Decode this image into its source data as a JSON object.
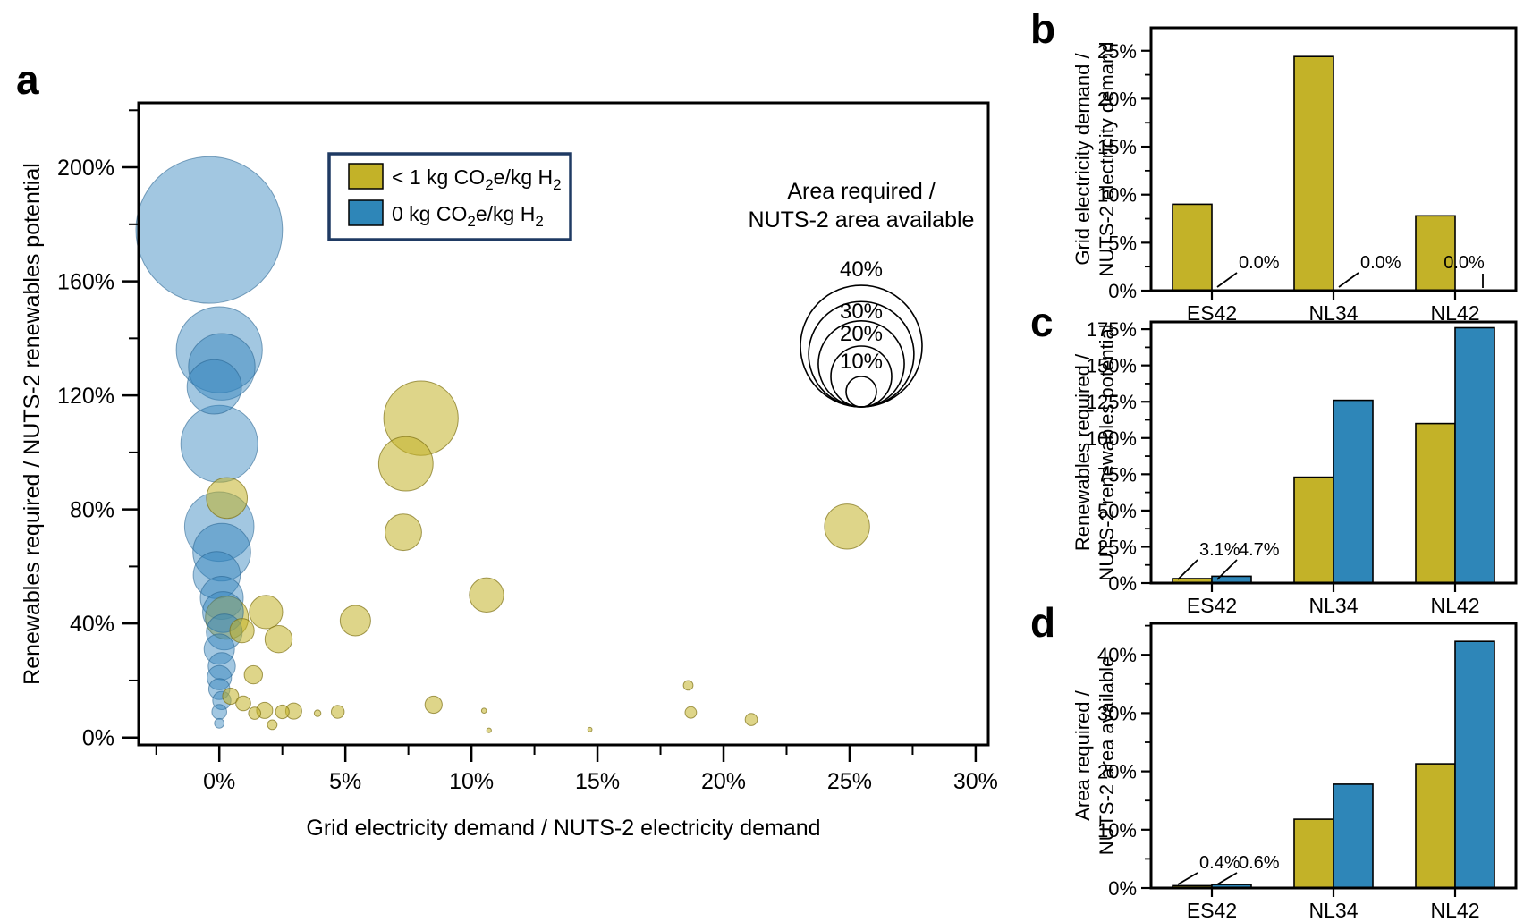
{
  "panel_labels": {
    "a": "a",
    "b": "b",
    "c": "c",
    "d": "d"
  },
  "colors": {
    "yellow": "#c3b228",
    "blue": "#2e86b8",
    "bar_edge": "#000000",
    "legend_border": "#1f3a63",
    "bubble_yellow_fill": "rgba(195,178,40,0.55)",
    "bubble_yellow_stroke": "rgba(125,112,20,0.7)",
    "bubble_blue_fill": "rgba(49,130,189,0.45)",
    "bubble_blue_stroke": "rgba(35,95,140,0.55)"
  },
  "chart_data": [
    {
      "id": "a",
      "type": "scatter",
      "xlabel": "Grid electricity demand / NUTS-2 electricity demand",
      "ylabel": "Renewables required / NUTS-2 renewables potential",
      "xlim": [
        -3.2,
        30.5
      ],
      "ylim": [
        -2.6,
        222.6
      ],
      "x_ticks": [
        0,
        5,
        10,
        15,
        20,
        25,
        30
      ],
      "x_tick_labels": [
        "0%",
        "5%",
        "10%",
        "15%",
        "20%",
        "25%",
        "30%"
      ],
      "x_minor_step": 2.5,
      "y_ticks": [
        0,
        40,
        80,
        120,
        160,
        200
      ],
      "y_tick_labels": [
        "0%",
        "40%",
        "80%",
        "120%",
        "160%",
        "200%"
      ],
      "y_minor_step": 20,
      "legend": [
        {
          "key": "yellow",
          "parts": [
            [
              "< 1 kg CO",
              false
            ],
            [
              "2",
              true
            ],
            [
              "e/kg H",
              false
            ],
            [
              "2",
              true
            ]
          ]
        },
        {
          "key": "blue",
          "parts": [
            [
              "0 kg CO",
              false
            ],
            [
              "2",
              true
            ],
            [
              "e/kg H",
              false
            ],
            [
              "2",
              true
            ]
          ]
        }
      ],
      "size_legend": {
        "title_lines": [
          "Area required /",
          "NUTS-2 area available"
        ],
        "circles": [
          {
            "size": 40,
            "label": "40%"
          },
          {
            "size": 30,
            "label": "30%"
          },
          {
            "size": 20,
            "label": "20%"
          },
          {
            "size": 10,
            "label": "10%"
          },
          {
            "size": 2.5,
            "label": ""
          }
        ]
      },
      "series": [
        {
          "name": "0 kg CO2e/kg H2",
          "key": "blue",
          "bubbles": [
            [
              -0.4,
              178,
              58
            ],
            [
              0.0,
              136,
              20
            ],
            [
              0.1,
              130,
              12
            ],
            [
              -0.2,
              123,
              8
            ],
            [
              0.0,
              103,
              16
            ],
            [
              0.0,
              74,
              13
            ],
            [
              0.1,
              65,
              9
            ],
            [
              -0.1,
              57,
              6
            ],
            [
              0.1,
              49,
              5
            ],
            [
              0.15,
              44,
              4.5
            ],
            [
              0.2,
              37,
              3.5
            ],
            [
              0.0,
              31,
              2.5
            ],
            [
              0.1,
              25,
              2.0
            ],
            [
              0.0,
              21,
              1.6
            ],
            [
              0.0,
              17,
              1.2
            ],
            [
              0.1,
              13,
              0.9
            ],
            [
              0.0,
              9,
              0.6
            ],
            [
              0.0,
              5,
              0.25
            ]
          ]
        },
        {
          "name": "< 1 kg CO2e/kg H2",
          "key": "yellow",
          "bubbles": [
            [
              0.3,
              84,
              4.5
            ],
            [
              0.3,
              42,
              5
            ],
            [
              0.9,
              37.5,
              1.6
            ],
            [
              1.85,
              44,
              3
            ],
            [
              2.35,
              34.5,
              2
            ],
            [
              5.4,
              41,
              2.5
            ],
            [
              8.0,
              112,
              15
            ],
            [
              7.4,
              96,
              8
            ],
            [
              7.3,
              72,
              3.6
            ],
            [
              10.6,
              50,
              3.2
            ],
            [
              24.9,
              74,
              5.5
            ],
            [
              1.35,
              22,
              0.9
            ],
            [
              0.45,
              14.5,
              0.7
            ],
            [
              0.95,
              12,
              0.6
            ],
            [
              1.4,
              8.5,
              0.4
            ],
            [
              1.8,
              9.5,
              0.7
            ],
            [
              2.5,
              9,
              0.5
            ],
            [
              2.95,
              9.3,
              0.7
            ],
            [
              2.1,
              4.5,
              0.25
            ],
            [
              3.9,
              8.5,
              0.12
            ],
            [
              4.7,
              9,
              0.45
            ],
            [
              8.5,
              11.5,
              0.8
            ],
            [
              10.5,
              9.4,
              0.07
            ],
            [
              10.7,
              2.5,
              0.06
            ],
            [
              14.7,
              2.8,
              0.05
            ],
            [
              18.6,
              18.3,
              0.25
            ],
            [
              18.7,
              8.8,
              0.35
            ],
            [
              21.1,
              6.3,
              0.4
            ]
          ]
        }
      ]
    },
    {
      "id": "b",
      "type": "bar",
      "ylabel_lines": [
        "Grid electricity demand /",
        "NUTS-2 electricity demand"
      ],
      "categories": [
        "ES42",
        "NL34",
        "NL42"
      ],
      "y_ticks": [
        0,
        5,
        10,
        15,
        20,
        25
      ],
      "y_tick_labels": [
        "0%",
        "5%",
        "10%",
        "15%",
        "20%",
        "25%"
      ],
      "ylim": [
        0,
        27.4
      ],
      "series": [
        {
          "name": "< 1 kg CO2e/kg H2",
          "key": "yellow",
          "values": [
            9.0,
            24.4,
            7.8
          ]
        },
        {
          "name": "0 kg CO2e/kg H2",
          "key": "blue",
          "values": [
            0.0,
            0.0,
            0.0
          ]
        }
      ],
      "annotations": [
        {
          "cat": 0,
          "series": 1,
          "text": "0.0%",
          "leader": "diag"
        },
        {
          "cat": 1,
          "series": 1,
          "text": "0.0%",
          "leader": "diag"
        },
        {
          "cat": 2,
          "series": 1,
          "text": "0.0%",
          "leader": "vert"
        }
      ]
    },
    {
      "id": "c",
      "type": "bar",
      "ylabel_lines": [
        "Renewables required /",
        "NUTS-2 renewables potential"
      ],
      "categories": [
        "ES42",
        "NL34",
        "NL42"
      ],
      "y_ticks": [
        0,
        25,
        50,
        75,
        100,
        125,
        150,
        175
      ],
      "y_tick_labels": [
        "0%",
        "25%",
        "50%",
        "75%",
        "100%",
        "125%",
        "150%",
        "175%"
      ],
      "ylim": [
        0,
        180
      ],
      "series": [
        {
          "name": "< 1 kg CO2e/kg H2",
          "key": "yellow",
          "values": [
            3.1,
            73,
            110
          ]
        },
        {
          "name": "0 kg CO2e/kg H2",
          "key": "blue",
          "values": [
            4.7,
            126,
            176
          ]
        }
      ],
      "annotations": [
        {
          "cat": 0,
          "series": 0,
          "text": "3.1%",
          "leader": "diag"
        },
        {
          "cat": 0,
          "series": 1,
          "text": "4.7%",
          "leader": "diag"
        }
      ]
    },
    {
      "id": "d",
      "type": "bar",
      "ylabel_lines": [
        "Area required /",
        "NUTS-2 area available"
      ],
      "categories": [
        "ES42",
        "NL34",
        "NL42"
      ],
      "y_ticks": [
        0,
        10,
        20,
        30,
        40
      ],
      "y_tick_labels": [
        "0%",
        "10%",
        "20%",
        "30%",
        "40%"
      ],
      "ylim": [
        0,
        45.4
      ],
      "series": [
        {
          "name": "< 1 kg CO2e/kg H2",
          "key": "yellow",
          "values": [
            0.4,
            11.8,
            21.3
          ]
        },
        {
          "name": "0 kg CO2e/kg H2",
          "key": "blue",
          "values": [
            0.6,
            17.8,
            42.3
          ]
        }
      ],
      "annotations": [
        {
          "cat": 0,
          "series": 0,
          "text": "0.4%",
          "leader": "diag"
        },
        {
          "cat": 0,
          "series": 1,
          "text": "0.6%",
          "leader": "diag"
        }
      ]
    }
  ]
}
